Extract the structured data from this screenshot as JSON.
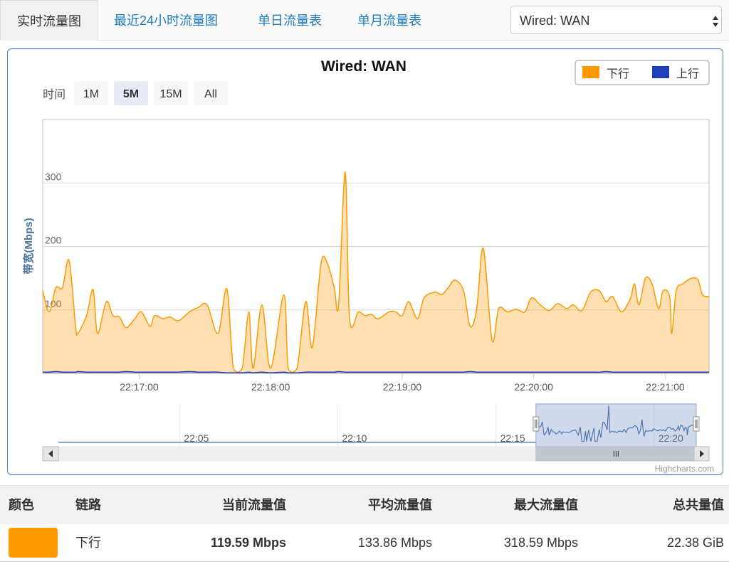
{
  "tabs": [
    "实时流量图",
    "最近24小时流量图",
    "单日流量表",
    "单月流量表"
  ],
  "select": "Wired: WAN",
  "chart_data": {
    "type": "area",
    "title": "Wired: WAN",
    "y_label": "带宽(Mbps)",
    "range_selector": {
      "label": "时间",
      "buttons": [
        "1M",
        "5M",
        "15M",
        "All"
      ],
      "selected": 1
    },
    "x": [
      "22:16:16",
      "22:16:19",
      "22:16:22",
      "22:16:25",
      "22:16:28",
      "22:16:31",
      "22:16:32",
      "22:16:36",
      "22:16:39",
      "22:16:41",
      "22:16:45",
      "22:16:48",
      "22:16:51",
      "22:16:54",
      "22:16:58",
      "22:17:01",
      "22:17:05",
      "22:17:07",
      "22:17:11",
      "22:17:14",
      "22:17:18",
      "22:17:23",
      "22:17:27",
      "22:17:31",
      "22:17:36",
      "22:17:40",
      "22:17:43",
      "22:17:47",
      "22:17:50",
      "22:17:52",
      "22:17:56",
      "22:18:00",
      "22:18:06",
      "22:18:08",
      "22:18:12",
      "22:18:16",
      "22:18:19",
      "22:18:23",
      "22:18:26",
      "22:18:29",
      "22:18:31",
      "22:18:34",
      "22:18:36",
      "22:18:40",
      "22:18:43",
      "22:18:46",
      "22:18:49",
      "22:18:54",
      "22:18:57",
      "22:19:00",
      "22:19:03",
      "22:19:07",
      "22:19:10",
      "22:19:15",
      "22:19:18",
      "22:19:21",
      "22:19:24",
      "22:19:28",
      "22:19:31",
      "22:19:34",
      "22:19:37",
      "22:19:41",
      "22:19:44",
      "22:19:48",
      "22:19:52",
      "22:19:56",
      "22:19:59",
      "22:20:03",
      "22:20:07",
      "22:20:11",
      "22:20:15",
      "22:20:18",
      "22:20:22",
      "22:20:26",
      "22:20:30",
      "22:20:33",
      "22:20:36",
      "22:20:40",
      "22:20:44",
      "22:20:46",
      "22:20:48",
      "22:20:51",
      "22:20:54",
      "22:20:57",
      "22:20:59",
      "22:21:02",
      "22:21:03",
      "22:21:05",
      "22:21:08",
      "22:21:12",
      "22:21:15",
      "22:21:17",
      "22:21:20"
    ],
    "series": [
      {
        "name": "下行",
        "color": "#ff9900",
        "values": [
          130,
          97,
          135,
          135,
          178,
          74,
          63,
          91,
          132,
          63,
          113,
          91,
          89,
          72,
          86,
          97,
          74,
          91,
          86,
          89,
          83,
          97,
          104,
          108,
          63,
          133,
          8,
          8,
          97,
          8,
          108,
          8,
          124,
          8,
          8,
          113,
          41,
          174,
          172,
          135,
          108,
          317,
          86,
          97,
          91,
          93,
          86,
          97,
          97,
          91,
          113,
          86,
          119,
          128,
          124,
          135,
          147,
          130,
          74,
          102,
          197,
          52,
          102,
          97,
          101,
          97,
          119,
          108,
          99,
          110,
          102,
          108,
          99,
          128,
          130,
          113,
          121,
          97,
          117,
          141,
          108,
          150,
          141,
          102,
          130,
          121,
          63,
          130,
          141,
          150,
          147,
          124,
          121
        ]
      },
      {
        "name": "上行",
        "color": "#1f3fbf",
        "values": [
          2,
          2,
          3,
          2,
          2,
          2,
          3,
          2,
          2,
          2,
          2,
          2,
          2,
          3,
          2,
          2,
          2,
          2,
          2,
          2,
          2,
          3,
          2,
          2,
          2,
          1,
          1,
          1,
          2,
          1,
          2,
          1,
          2,
          1,
          1,
          2,
          2,
          2,
          2,
          2,
          3,
          2,
          2,
          2,
          2,
          2,
          2,
          2,
          2,
          2,
          2,
          2,
          2,
          2,
          2,
          2,
          2,
          2,
          3,
          2,
          2,
          2,
          2,
          2,
          2,
          2,
          2,
          2,
          2,
          2,
          2,
          2,
          2,
          2,
          2,
          3,
          2,
          2,
          2,
          2,
          2,
          2,
          2,
          2,
          2,
          2,
          2,
          2,
          2,
          2,
          2,
          2,
          2
        ]
      }
    ],
    "xlim": [
      "22:16:16",
      "22:21:20"
    ],
    "xticks": [
      "22:17:00",
      "22:18:00",
      "22:19:00",
      "22:20:00",
      "22:21:00"
    ],
    "ylim": [
      0,
      400
    ],
    "yticks": [
      100,
      200,
      300
    ],
    "grid": true,
    "legend": "top-right",
    "navigator": {
      "xlim": [
        "22:01:10",
        "22:21:16"
      ],
      "xticks": [
        "22:05",
        "22:10",
        "22:15",
        "22:20"
      ]
    },
    "credits": "Highcharts.com"
  },
  "table": {
    "header": [
      "颜色",
      "链路",
      "当前流量值",
      "平均流量值",
      "最大流量值",
      "总共量值"
    ],
    "rows": [
      [
        "下行",
        "119.59 Mbps",
        "133.86 Mbps",
        "318.59 Mbps",
        "22.38 GiB"
      ]
    ]
  }
}
